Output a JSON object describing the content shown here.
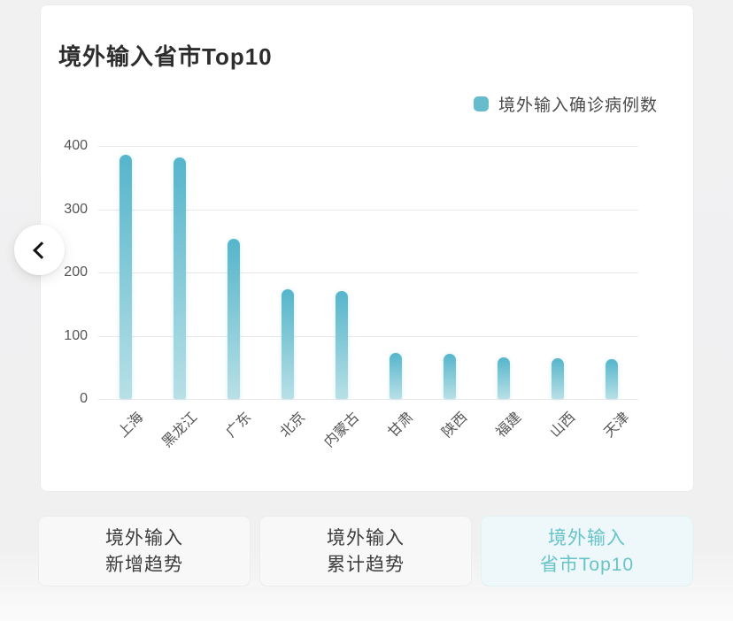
{
  "card": {
    "title": "境外输入省市Top10"
  },
  "legend": {
    "label": "境外输入确诊病例数",
    "swatch_color": "#66bccd"
  },
  "chart_data": {
    "type": "bar",
    "title": "境外输入省市Top10",
    "legend_entries": [
      "境外输入确诊病例数"
    ],
    "legend_position": "top-right",
    "categories": [
      "上海",
      "黑龙江",
      "广东",
      "北京",
      "内蒙古",
      "甘肃",
      "陕西",
      "福建",
      "山西",
      "天津"
    ],
    "values": [
      386,
      382,
      253,
      173,
      171,
      73,
      72,
      66,
      65,
      63
    ],
    "xlabel": "",
    "ylabel": "",
    "ylim": [
      0,
      400
    ],
    "yticks": [
      0,
      100,
      200,
      300,
      400
    ],
    "grid": true,
    "x_label_rotation_deg": -45,
    "bar_color_top": "#55b5cb",
    "bar_color_bottom": "#b8e0e6"
  },
  "nav": {
    "back": "previous-chart"
  },
  "tabs": [
    {
      "line1": "境外输入",
      "line2": "新增趋势",
      "active": false
    },
    {
      "line1": "境外输入",
      "line2": "累计趋势",
      "active": false
    },
    {
      "line1": "境外输入",
      "line2": "省市Top10",
      "active": true
    }
  ],
  "colors": {
    "accent_teal": "#68c4c8",
    "active_tab_bg": "#eef7f9",
    "grid_line": "#e9e9ea",
    "axis_text": "#555555",
    "title_text": "#2d2d2d"
  }
}
